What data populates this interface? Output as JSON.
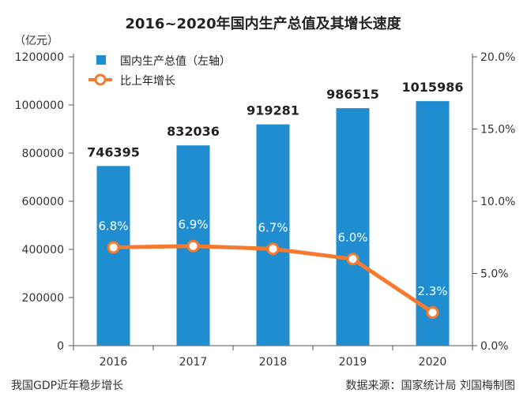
{
  "chart_data": {
    "type": "bar",
    "title": "2016~2020年国内生产总值及其增长速度",
    "ylabel_unit": "（亿元）",
    "categories": [
      "2016",
      "2017",
      "2018",
      "2019",
      "2020"
    ],
    "series": [
      {
        "name": "国内生产总值（左轴）",
        "type": "bar",
        "axis": "left",
        "color": "#1f8dd0",
        "values": [
          746395,
          832036,
          919281,
          986515,
          1015986
        ],
        "labels": [
          "746395",
          "832036",
          "919281",
          "986515",
          "1015986"
        ]
      },
      {
        "name": "比上年增长",
        "type": "line",
        "axis": "right",
        "color": "#f47a30",
        "values": [
          6.8,
          6.9,
          6.7,
          6.0,
          2.3
        ],
        "labels": [
          "6.8%",
          "6.9%",
          "6.7%",
          "6.0%",
          "2.3%"
        ]
      }
    ],
    "left_axis": {
      "ylim": [
        0,
        1200000
      ],
      "ticks": [
        0,
        200000,
        400000,
        600000,
        800000,
        1000000,
        1200000
      ],
      "tick_labels": [
        "0",
        "200000",
        "400000",
        "600000",
        "800000",
        "1000000",
        "1200000"
      ]
    },
    "right_axis": {
      "ylim": [
        0,
        20
      ],
      "ticks": [
        0,
        5,
        10,
        15,
        20
      ],
      "tick_labels": [
        "0.0%",
        "5.0%",
        "10.0%",
        "15.0%",
        "20.0%"
      ]
    },
    "legend_position": "top-left",
    "grid": false
  },
  "footer": {
    "left": "我国GDP近年稳步增长",
    "right": "数据来源：国家统计局  刘国梅制图"
  },
  "colors": {
    "bar": "#1f8dd0",
    "line": "#f47a30",
    "axis": "#555555",
    "text": "#222222"
  }
}
